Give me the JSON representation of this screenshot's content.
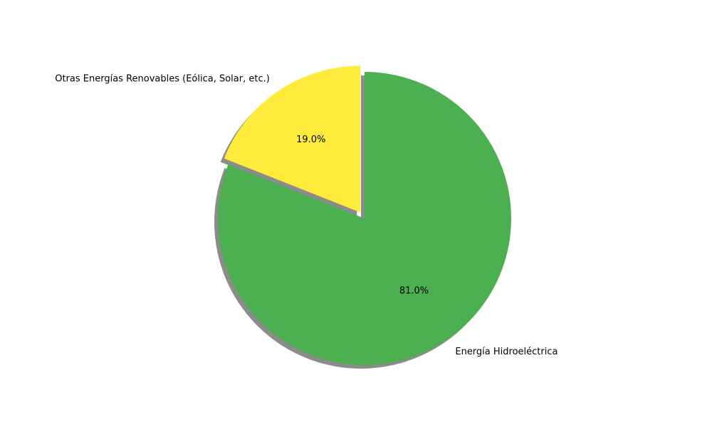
{
  "chart_data": {
    "type": "pie",
    "labels": [
      "Otras Energías Renovables (Eólica, Solar, etc.)",
      "Energía Hidroeléctrica"
    ],
    "values": [
      19.0,
      81.0
    ],
    "percent_labels": [
      "19.0%",
      "81.0%"
    ],
    "colors": [
      "#ffeb3b",
      "#4caf50"
    ],
    "explode": [
      0.05,
      0
    ],
    "start_angle_deg": 90,
    "direction": "counterclockwise",
    "shadow": true,
    "legend": false
  }
}
